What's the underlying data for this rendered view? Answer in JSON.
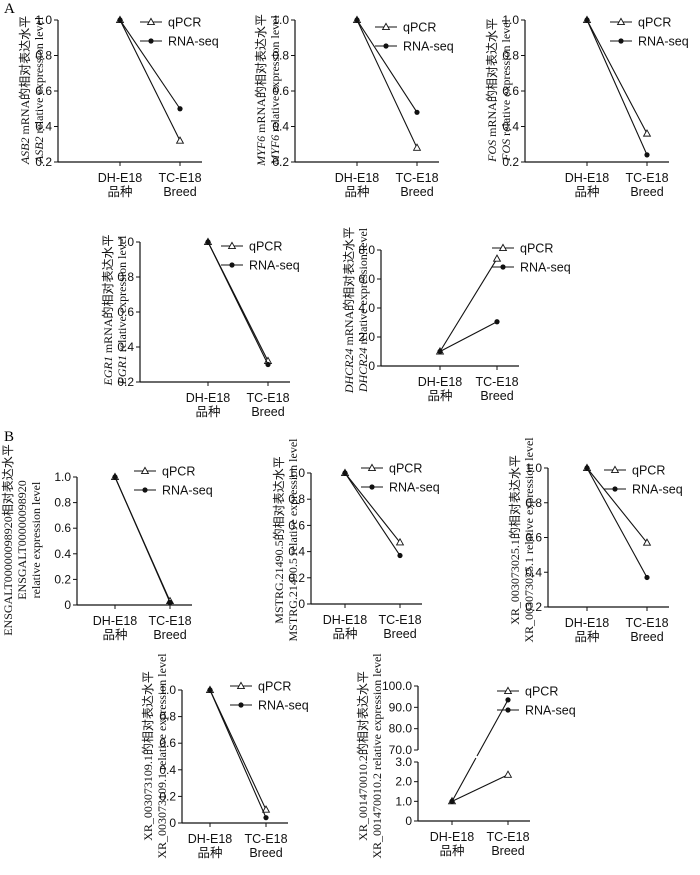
{
  "panel_labels": [
    "A",
    "B"
  ],
  "chart_data": [
    {
      "panel": "A",
      "type": "line",
      "categories": [
        "DH-E18",
        "TC-E18"
      ],
      "xlabel": [
        "品种",
        "Breed"
      ],
      "ylabel": [
        "ASB2 mRNA的相对表达水平",
        "ASB2 relative expression level"
      ],
      "italic_prefix": [
        "ASB2",
        "ASB2"
      ],
      "ylim": [
        0.2,
        1.0
      ],
      "ticks": [
        "0.2",
        "0.4",
        "0.6",
        "0.8",
        "1.0"
      ],
      "series": [
        {
          "name": "qPCR",
          "values": [
            1.0,
            0.32
          ],
          "marker": "triangle-open"
        },
        {
          "name": "RNA-seq",
          "values": [
            1.0,
            0.5
          ],
          "marker": "circle-filled"
        }
      ]
    },
    {
      "panel": "A",
      "type": "line",
      "categories": [
        "DH-E18",
        "TC-E18"
      ],
      "xlabel": [
        "品种",
        "Breed"
      ],
      "ylabel": [
        "MYF6 mRNA的相对表达水平",
        "MYF6 relative expression level"
      ],
      "italic_prefix": [
        "MYF6",
        "MYF6"
      ],
      "ylim": [
        0.2,
        1.0
      ],
      "ticks": [
        "0.2",
        "0.4",
        "0.6",
        "0.8",
        "1.0"
      ],
      "series": [
        {
          "name": "qPCR",
          "values": [
            1.0,
            0.28
          ],
          "marker": "triangle-open"
        },
        {
          "name": "RNA-seq",
          "values": [
            1.0,
            0.48
          ],
          "marker": "circle-filled"
        }
      ]
    },
    {
      "panel": "A",
      "type": "line",
      "categories": [
        "DH-E18",
        "TC-E18"
      ],
      "xlabel": [
        "品种",
        "Breed"
      ],
      "ylabel": [
        "FOS mRNA的相对表达水平",
        "FOS relative expression level"
      ],
      "italic_prefix": [
        "FOS",
        "FOS"
      ],
      "ylim": [
        0.2,
        1.0
      ],
      "ticks": [
        "0.2",
        "0.4",
        "0.6",
        "0.8",
        "1.0"
      ],
      "series": [
        {
          "name": "qPCR",
          "values": [
            1.0,
            0.36
          ],
          "marker": "triangle-open"
        },
        {
          "name": "RNA-seq",
          "values": [
            1.0,
            0.24
          ],
          "marker": "circle-filled"
        }
      ]
    },
    {
      "panel": "A",
      "type": "line",
      "categories": [
        "DH-E18",
        "TC-E18"
      ],
      "xlabel": [
        "品种",
        "Breed"
      ],
      "ylabel": [
        "EGR1 mRNA的相对表达水平",
        "EGR1 relative expression level"
      ],
      "italic_prefix": [
        "EGR1",
        "EGR1"
      ],
      "ylim": [
        0.2,
        1.0
      ],
      "ticks": [
        "0.2",
        "0.4",
        "0.6",
        "0.8",
        "1.0"
      ],
      "series": [
        {
          "name": "qPCR",
          "values": [
            1.0,
            0.32
          ],
          "marker": "triangle-open"
        },
        {
          "name": "RNA-seq",
          "values": [
            1.0,
            0.3
          ],
          "marker": "circle-filled"
        }
      ]
    },
    {
      "panel": "A",
      "type": "line",
      "categories": [
        "DH-E18",
        "TC-E18"
      ],
      "xlabel": [
        "品种",
        "Breed"
      ],
      "ylabel": [
        "DHCR24 mRNA的相对表达水平",
        "DHCR24 relative expression level"
      ],
      "italic_prefix": [
        "DHCR24",
        "DHCR24"
      ],
      "ylim": [
        0,
        8.0
      ],
      "ticks": [
        "0",
        "2.0",
        "4.0",
        "6.0",
        "8.0"
      ],
      "series": [
        {
          "name": "qPCR",
          "values": [
            1.0,
            7.4
          ],
          "marker": "triangle-open"
        },
        {
          "name": "RNA-seq",
          "values": [
            1.0,
            3.05
          ],
          "marker": "circle-filled"
        }
      ]
    },
    {
      "panel": "B",
      "type": "line",
      "categories": [
        "DH-E18",
        "TC-E18"
      ],
      "xlabel": [
        "品种",
        "Breed"
      ],
      "ylabel": [
        "ENSGALT00000098920相对表达水平",
        "ENSGALT00000098920",
        "relative expression level"
      ],
      "ylim": [
        0,
        1.0
      ],
      "ticks": [
        "0",
        "0.2",
        "0.4",
        "0.6",
        "0.8",
        "1.0"
      ],
      "series": [
        {
          "name": "qPCR",
          "values": [
            1.0,
            0.03
          ],
          "marker": "triangle-open"
        },
        {
          "name": "RNA-seq",
          "values": [
            1.0,
            0.02
          ],
          "marker": "circle-filled"
        }
      ]
    },
    {
      "panel": "B",
      "type": "line",
      "categories": [
        "DH-E18",
        "TC-E18"
      ],
      "xlabel": [
        "品种",
        "Breed"
      ],
      "ylabel": [
        "MSTRG.21490.5的相对表达水平",
        "MSTRG.21490.5 relative expression level"
      ],
      "ylim": [
        0,
        1.0
      ],
      "ticks": [
        "0",
        "0.2",
        "0.4",
        "0.6",
        "0.8",
        "1.0"
      ],
      "series": [
        {
          "name": "qPCR",
          "values": [
            1.0,
            0.47
          ],
          "marker": "triangle-open"
        },
        {
          "name": "RNA-seq",
          "values": [
            1.0,
            0.37
          ],
          "marker": "circle-filled"
        }
      ]
    },
    {
      "panel": "B",
      "type": "line",
      "categories": [
        "DH-E18",
        "TC-E18"
      ],
      "xlabel": [
        "品种",
        "Breed"
      ],
      "ylabel": [
        "XR_003073025.1的相对表达水平",
        "XR_003073025.1 relative expression level"
      ],
      "ylim": [
        0.2,
        1.0
      ],
      "ticks": [
        "0.2",
        "0.4",
        "0.6",
        "0.8",
        "1.0"
      ],
      "series": [
        {
          "name": "qPCR",
          "values": [
            1.0,
            0.57
          ],
          "marker": "triangle-open"
        },
        {
          "name": "RNA-seq",
          "values": [
            1.0,
            0.37
          ],
          "marker": "circle-filled"
        }
      ]
    },
    {
      "panel": "B",
      "type": "line",
      "categories": [
        "DH-E18",
        "TC-E18"
      ],
      "xlabel": [
        "品种",
        "Breed"
      ],
      "ylabel": [
        "XR_003073109.1的相对表达水平",
        "XR_003073109.1 relative expression level"
      ],
      "ylim": [
        0,
        1.0
      ],
      "ticks": [
        "0",
        "0.2",
        "0.4",
        "0.6",
        "0.8",
        "1.0"
      ],
      "series": [
        {
          "name": "qPCR",
          "values": [
            1.0,
            0.1
          ],
          "marker": "triangle-open"
        },
        {
          "name": "RNA-seq",
          "values": [
            1.0,
            0.04
          ],
          "marker": "circle-filled"
        }
      ]
    },
    {
      "panel": "B",
      "type": "line",
      "categories": [
        "DH-E18",
        "TC-E18"
      ],
      "xlabel": [
        "品种",
        "Breed"
      ],
      "ylabel": [
        "XR_001470010.2的相对表达水平",
        "XR_001470010.2 relative expression level"
      ],
      "axis_break": true,
      "ylim": [
        0,
        100.0
      ],
      "ticks": [
        "0",
        "1.0",
        "2.0",
        "3.0",
        "70.0",
        "80.0",
        "90.0",
        "100.0"
      ],
      "series": [
        {
          "name": "qPCR",
          "values": [
            1.0,
            2.35
          ],
          "marker": "triangle-open"
        },
        {
          "name": "RNA-seq",
          "values": [
            1.0,
            93.5
          ],
          "marker": "circle-filled"
        }
      ]
    }
  ]
}
